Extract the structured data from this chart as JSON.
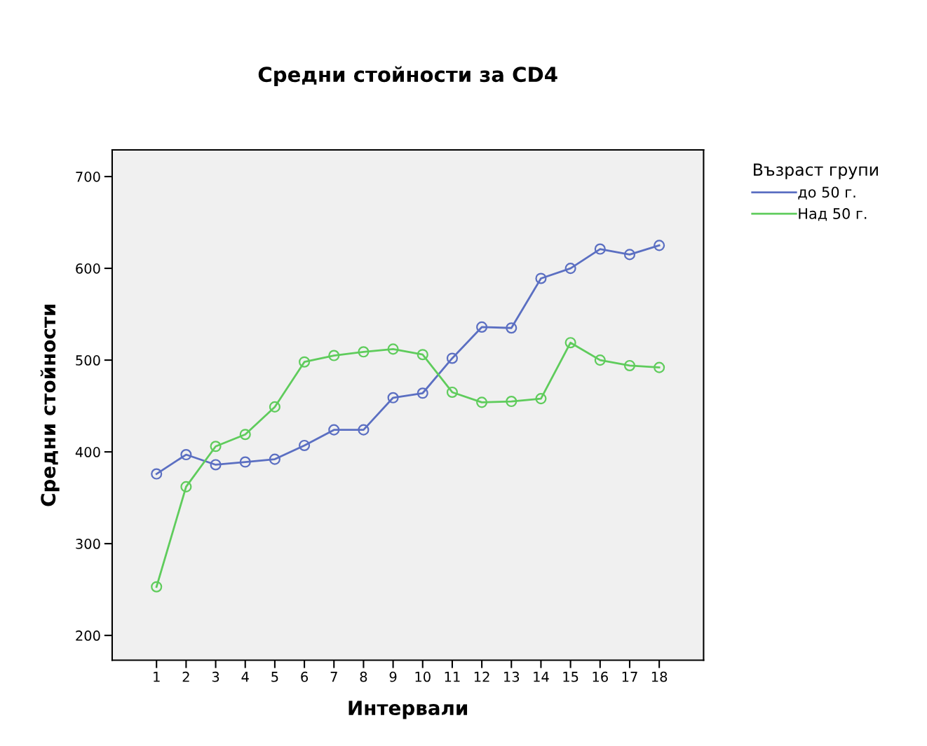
{
  "chart_data": {
    "type": "line",
    "title": "Средни стойности за CD4",
    "xlabel": "Интервали",
    "ylabel": "Средни стойности",
    "legend_title": "Възраст групи",
    "categories": [
      "1",
      "2",
      "3",
      "4",
      "5",
      "6",
      "7",
      "8",
      "9",
      "10",
      "11",
      "12",
      "13",
      "14",
      "15",
      "16",
      "17",
      "18"
    ],
    "series": [
      {
        "name": "до 50 г.",
        "color": "#5b6fc2",
        "values": [
          376,
          397,
          386,
          389,
          392,
          407,
          424,
          424,
          459,
          464,
          502,
          536,
          535,
          589,
          600,
          621,
          615,
          625
        ]
      },
      {
        "name": "Над 50 г.",
        "color": "#5fcc5c",
        "values": [
          253,
          362,
          406,
          419,
          449,
          498,
          505,
          509,
          512,
          506,
          465,
          454,
          455,
          458,
          519,
          500,
          494,
          492
        ]
      }
    ],
    "ylim": [
      173,
      729
    ],
    "yticks": [
      200,
      300,
      400,
      500,
      600,
      700
    ],
    "grid": false,
    "legend": "top right",
    "marker": "circle",
    "line_style": "solid"
  }
}
